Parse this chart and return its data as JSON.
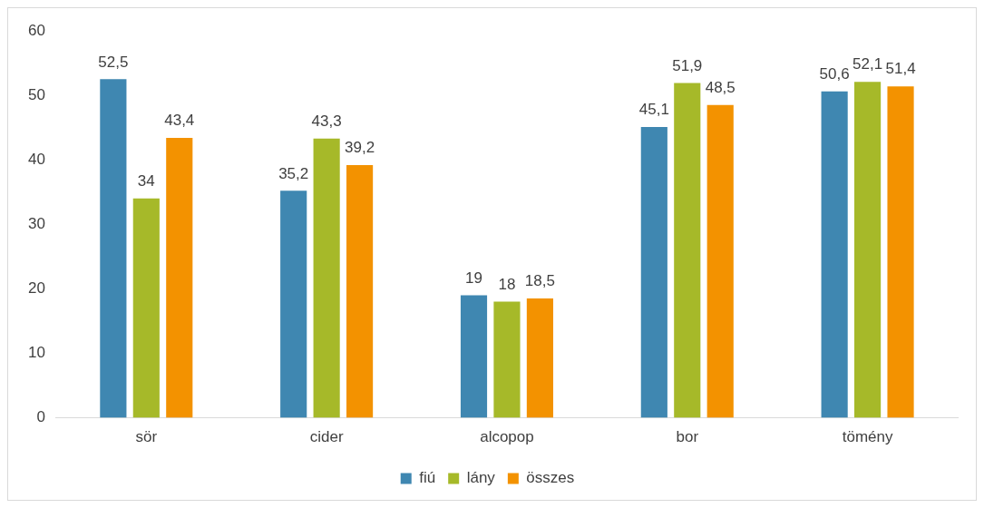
{
  "chart_data": {
    "type": "bar",
    "categories": [
      "sör",
      "cider",
      "alcopop",
      "bor",
      "tömény"
    ],
    "series": [
      {
        "name": "fiú",
        "color": "#3f87b1",
        "values": [
          52.5,
          35.2,
          19,
          45.1,
          50.6
        ],
        "value_labels": [
          "52,5",
          "35,2",
          "19",
          "45,1",
          "50,6"
        ]
      },
      {
        "name": "lány",
        "color": "#a6b929",
        "values": [
          34,
          43.3,
          18,
          51.9,
          52.1
        ],
        "value_labels": [
          "34",
          "43,3",
          "18",
          "51,9",
          "52,1"
        ]
      },
      {
        "name": "összes",
        "color": "#f39200",
        "values": [
          43.4,
          39.2,
          18.5,
          48.5,
          51.4
        ],
        "value_labels": [
          "43,4",
          "39,2",
          "18,5",
          "48,5",
          "51,4"
        ]
      }
    ],
    "ylim": [
      0,
      60
    ],
    "yticks": [
      0,
      10,
      20,
      30,
      40,
      50,
      60
    ],
    "grid": false,
    "legend": "bottom"
  }
}
